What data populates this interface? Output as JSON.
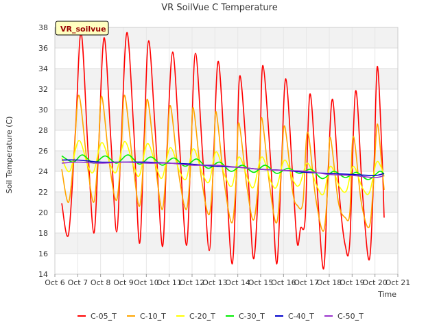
{
  "chart_data": {
    "type": "line",
    "title": "VR SoilVue C Temperature",
    "xlabel": "Time",
    "ylabel": "Soil Temperature (C)",
    "badge": "VR_soilvue",
    "x_ticks": [
      "Oct 6",
      "Oct 7",
      "Oct 8",
      "Oct 9",
      "Oct 10",
      "Oct 11",
      "Oct 12",
      "Oct 13",
      "Oct 14",
      "Oct 15",
      "Oct 16",
      "Oct 17",
      "Oct 18",
      "Oct 19",
      "Oct 20",
      "Oct 21"
    ],
    "xlim": [
      6,
      21
    ],
    "ylim": [
      14,
      38
    ],
    "y_ticks": [
      14,
      16,
      18,
      20,
      22,
      24,
      26,
      28,
      30,
      32,
      34,
      36,
      38
    ],
    "grid": true,
    "legend_position": "bottom",
    "series": [
      {
        "name": "C-05_T",
        "color": "#ff0000",
        "points": [
          [
            6.3,
            20.9
          ],
          [
            6.6,
            17.9
          ],
          [
            6.9,
            28.0
          ],
          [
            7.15,
            37.5
          ],
          [
            7.45,
            26.0
          ],
          [
            7.7,
            18.0
          ],
          [
            7.9,
            25.5
          ],
          [
            8.15,
            37.0
          ],
          [
            8.45,
            27.0
          ],
          [
            8.7,
            18.1
          ],
          [
            8.9,
            27.0
          ],
          [
            9.15,
            37.5
          ],
          [
            9.45,
            28.0
          ],
          [
            9.7,
            17.0
          ],
          [
            9.9,
            27.0
          ],
          [
            10.1,
            36.7
          ],
          [
            10.4,
            27.5
          ],
          [
            10.7,
            16.7
          ],
          [
            10.9,
            26.0
          ],
          [
            11.15,
            35.6
          ],
          [
            11.45,
            26.5
          ],
          [
            11.75,
            16.8
          ],
          [
            11.95,
            26.0
          ],
          [
            12.15,
            35.5
          ],
          [
            12.45,
            26.0
          ],
          [
            12.75,
            16.3
          ],
          [
            12.95,
            26.0
          ],
          [
            13.15,
            34.7
          ],
          [
            13.45,
            25.0
          ],
          [
            13.75,
            15.0
          ],
          [
            13.95,
            24.5
          ],
          [
            14.1,
            33.3
          ],
          [
            14.45,
            23.5
          ],
          [
            14.7,
            15.5
          ],
          [
            14.95,
            25.0
          ],
          [
            15.1,
            34.3
          ],
          [
            15.45,
            24.5
          ],
          [
            15.7,
            15.0
          ],
          [
            15.9,
            24.0
          ],
          [
            16.1,
            33.0
          ],
          [
            16.4,
            23.5
          ],
          [
            16.6,
            17.0
          ],
          [
            16.75,
            18.5
          ],
          [
            16.95,
            19.5
          ],
          [
            17.15,
            31.5
          ],
          [
            17.45,
            23.0
          ],
          [
            17.75,
            14.5
          ],
          [
            17.95,
            24.0
          ],
          [
            18.15,
            31.0
          ],
          [
            18.45,
            21.5
          ],
          [
            18.7,
            16.8
          ],
          [
            18.9,
            17.2
          ],
          [
            19.15,
            31.8
          ],
          [
            19.45,
            22.0
          ],
          [
            19.75,
            15.4
          ],
          [
            19.95,
            24.0
          ],
          [
            20.1,
            34.2
          ],
          [
            20.3,
            26.0
          ],
          [
            20.4,
            19.5
          ]
        ]
      },
      {
        "name": "C-10_T",
        "color": "#ffa500",
        "points": [
          [
            6.3,
            24.2
          ],
          [
            6.6,
            21.0
          ],
          [
            6.85,
            26.0
          ],
          [
            7.05,
            31.4
          ],
          [
            7.4,
            25.0
          ],
          [
            7.7,
            21.0
          ],
          [
            7.9,
            26.0
          ],
          [
            8.05,
            31.3
          ],
          [
            8.4,
            24.5
          ],
          [
            8.7,
            21.2
          ],
          [
            8.9,
            26.0
          ],
          [
            9.05,
            31.4
          ],
          [
            9.4,
            25.0
          ],
          [
            9.7,
            20.6
          ],
          [
            9.9,
            26.0
          ],
          [
            10.05,
            31.0
          ],
          [
            10.4,
            24.5
          ],
          [
            10.7,
            20.3
          ],
          [
            10.9,
            25.5
          ],
          [
            11.05,
            30.4
          ],
          [
            11.4,
            24.0
          ],
          [
            11.75,
            20.3
          ],
          [
            11.95,
            25.0
          ],
          [
            12.05,
            30.2
          ],
          [
            12.4,
            23.5
          ],
          [
            12.75,
            19.8
          ],
          [
            12.95,
            25.0
          ],
          [
            13.05,
            29.8
          ],
          [
            13.4,
            23.0
          ],
          [
            13.75,
            19.0
          ],
          [
            13.95,
            24.0
          ],
          [
            14.05,
            28.7
          ],
          [
            14.4,
            22.5
          ],
          [
            14.7,
            19.3
          ],
          [
            14.95,
            24.5
          ],
          [
            15.05,
            29.2
          ],
          [
            15.4,
            22.5
          ],
          [
            15.7,
            19.0
          ],
          [
            15.9,
            24.0
          ],
          [
            16.05,
            28.4
          ],
          [
            16.4,
            22.0
          ],
          [
            16.6,
            20.7
          ],
          [
            16.85,
            21.0
          ],
          [
            17.05,
            27.8
          ],
          [
            17.4,
            21.5
          ],
          [
            17.75,
            18.2
          ],
          [
            17.95,
            23.0
          ],
          [
            18.05,
            27.3
          ],
          [
            18.4,
            21.0
          ],
          [
            18.7,
            19.5
          ],
          [
            18.9,
            20.0
          ],
          [
            19.05,
            27.4
          ],
          [
            19.4,
            21.0
          ],
          [
            19.75,
            18.6
          ],
          [
            19.95,
            23.5
          ],
          [
            20.1,
            28.6
          ],
          [
            20.3,
            24.5
          ],
          [
            20.4,
            22.2
          ]
        ]
      },
      {
        "name": "C-20_T",
        "color": "#ffff00",
        "points": [
          [
            6.3,
            25.3
          ],
          [
            6.65,
            24.0
          ],
          [
            7.05,
            27.0
          ],
          [
            7.45,
            24.5
          ],
          [
            7.7,
            24.0
          ],
          [
            8.05,
            26.8
          ],
          [
            8.45,
            24.5
          ],
          [
            8.7,
            24.0
          ],
          [
            9.05,
            26.9
          ],
          [
            9.45,
            24.5
          ],
          [
            9.7,
            23.6
          ],
          [
            10.05,
            26.7
          ],
          [
            10.45,
            24.3
          ],
          [
            10.7,
            23.4
          ],
          [
            11.05,
            26.3
          ],
          [
            11.45,
            24.0
          ],
          [
            11.75,
            23.3
          ],
          [
            12.05,
            26.2
          ],
          [
            12.45,
            23.8
          ],
          [
            12.75,
            23.0
          ],
          [
            13.05,
            25.9
          ],
          [
            13.45,
            23.5
          ],
          [
            13.75,
            22.6
          ],
          [
            14.05,
            25.4
          ],
          [
            14.45,
            23.2
          ],
          [
            14.7,
            22.5
          ],
          [
            15.05,
            25.4
          ],
          [
            15.45,
            23.0
          ],
          [
            15.7,
            22.5
          ],
          [
            16.05,
            25.1
          ],
          [
            16.45,
            23.0
          ],
          [
            16.7,
            22.7
          ],
          [
            17.05,
            24.8
          ],
          [
            17.45,
            22.6
          ],
          [
            17.75,
            21.8
          ],
          [
            18.05,
            24.5
          ],
          [
            18.45,
            22.5
          ],
          [
            18.75,
            22.1
          ],
          [
            19.05,
            24.5
          ],
          [
            19.45,
            22.4
          ],
          [
            19.75,
            21.9
          ],
          [
            20.05,
            24.8
          ],
          [
            20.25,
            24.5
          ],
          [
            20.4,
            23.5
          ]
        ]
      },
      {
        "name": "C-30_T",
        "color": "#00ee00",
        "points": [
          [
            6.3,
            25.5
          ],
          [
            6.8,
            24.9
          ],
          [
            7.2,
            25.6
          ],
          [
            7.7,
            24.8
          ],
          [
            8.2,
            25.5
          ],
          [
            8.7,
            24.8
          ],
          [
            9.2,
            25.6
          ],
          [
            9.7,
            24.7
          ],
          [
            10.2,
            25.4
          ],
          [
            10.7,
            24.6
          ],
          [
            11.2,
            25.3
          ],
          [
            11.7,
            24.5
          ],
          [
            12.2,
            25.2
          ],
          [
            12.7,
            24.3
          ],
          [
            13.2,
            24.9
          ],
          [
            13.7,
            24.0
          ],
          [
            14.2,
            24.6
          ],
          [
            14.7,
            23.9
          ],
          [
            15.2,
            24.6
          ],
          [
            15.7,
            23.8
          ],
          [
            16.2,
            24.3
          ],
          [
            16.7,
            23.8
          ],
          [
            17.2,
            24.2
          ],
          [
            17.7,
            23.3
          ],
          [
            18.2,
            24.0
          ],
          [
            18.7,
            23.4
          ],
          [
            19.2,
            23.9
          ],
          [
            19.7,
            23.2
          ],
          [
            20.2,
            24.0
          ],
          [
            20.4,
            23.7
          ]
        ]
      },
      {
        "name": "C-40_T",
        "color": "#0000cc",
        "points": [
          [
            6.3,
            25.1
          ],
          [
            7.0,
            25.1
          ],
          [
            8.0,
            24.9
          ],
          [
            9.0,
            24.9
          ],
          [
            10.0,
            24.9
          ],
          [
            11.0,
            24.8
          ],
          [
            12.0,
            24.7
          ],
          [
            13.0,
            24.5
          ],
          [
            14.0,
            24.4
          ],
          [
            15.0,
            24.2
          ],
          [
            16.0,
            24.1
          ],
          [
            17.0,
            23.9
          ],
          [
            18.0,
            23.8
          ],
          [
            19.0,
            23.7
          ],
          [
            20.0,
            23.6
          ],
          [
            20.4,
            23.8
          ]
        ]
      },
      {
        "name": "C-50_T",
        "color": "#9932cc",
        "points": [
          [
            6.3,
            24.8
          ],
          [
            7.0,
            24.9
          ],
          [
            8.0,
            24.8
          ],
          [
            9.0,
            24.9
          ],
          [
            10.0,
            24.8
          ],
          [
            11.0,
            24.8
          ],
          [
            12.0,
            24.6
          ],
          [
            13.0,
            24.6
          ],
          [
            14.0,
            24.4
          ],
          [
            15.0,
            24.2
          ],
          [
            16.0,
            24.1
          ],
          [
            17.0,
            24.0
          ],
          [
            18.0,
            23.7
          ],
          [
            19.0,
            23.6
          ],
          [
            20.0,
            23.4
          ],
          [
            20.4,
            23.6
          ]
        ]
      }
    ]
  }
}
